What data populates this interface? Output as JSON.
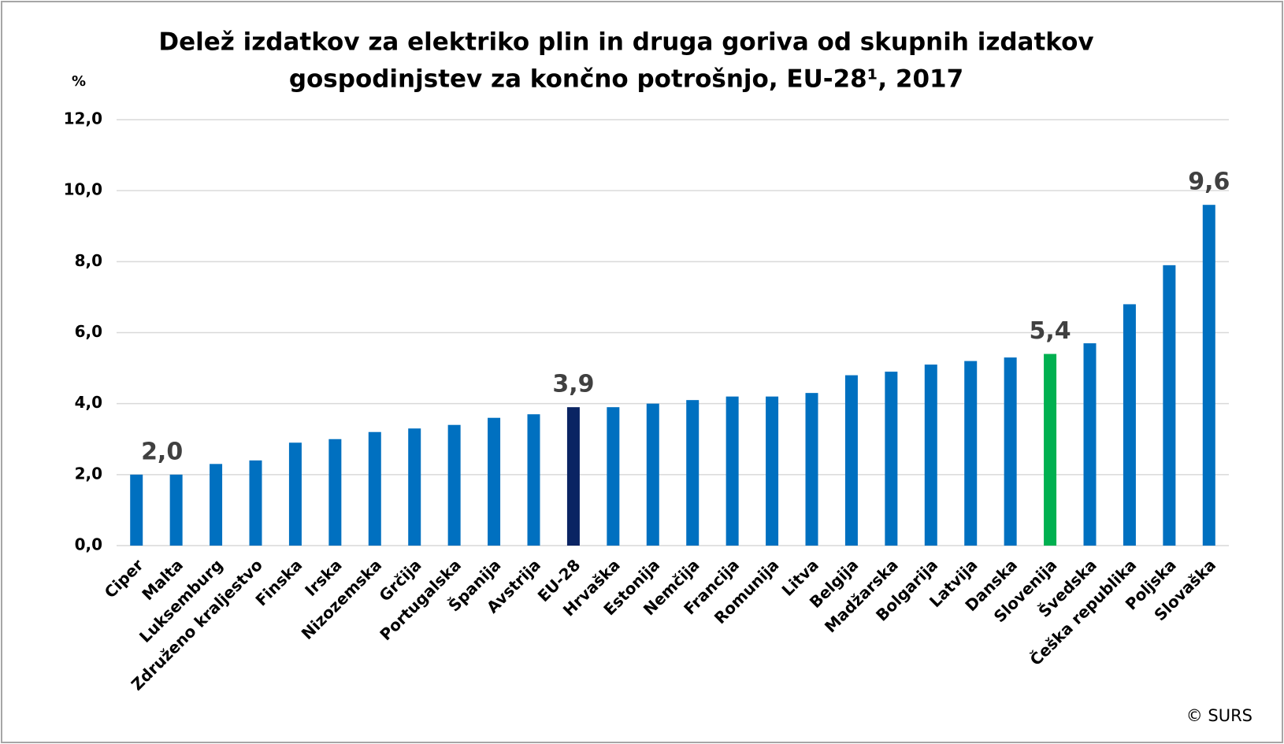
{
  "chart_data": {
    "type": "bar",
    "title": [
      "Delež izdatkov za elektriko plin in druga goriva od skupnih izdatkov",
      "gospodinjstev za končno potrošnjo, EU-28¹, 2017"
    ],
    "y_label": "%",
    "source": "© SURS",
    "categories": [
      "Ciper",
      "Malta",
      "Luksemburg",
      "Združeno kraljestvo",
      "Finska",
      "Irska",
      "Nizozemska",
      "Grčija",
      "Portugalska",
      "Španija",
      "Avstrija",
      "EU-28",
      "Hrvaška",
      "Estonija",
      "Nemčija",
      "Francija",
      "Romunija",
      "Litva",
      "Belgija",
      "Madžarska",
      "Bolgarija",
      "Latvija",
      "Danska",
      "Slovenija",
      "Švedska",
      "Češka republika",
      "Poljska",
      "Slovaška"
    ],
    "values": [
      2.0,
      2.0,
      2.3,
      2.4,
      2.9,
      3.0,
      3.2,
      3.3,
      3.4,
      3.6,
      3.7,
      3.9,
      3.9,
      4.0,
      4.1,
      4.2,
      4.2,
      4.3,
      4.8,
      4.9,
      5.1,
      5.2,
      5.3,
      5.4,
      5.7,
      6.8,
      7.9,
      9.6
    ],
    "value_labels": [
      null,
      "2,0",
      null,
      null,
      null,
      null,
      null,
      null,
      null,
      null,
      null,
      "3,9",
      null,
      null,
      null,
      null,
      null,
      null,
      null,
      null,
      null,
      null,
      null,
      "5,4",
      null,
      null,
      null,
      "9,6"
    ],
    "colors": [
      "#0070c0",
      "#0070c0",
      "#0070c0",
      "#0070c0",
      "#0070c0",
      "#0070c0",
      "#0070c0",
      "#0070c0",
      "#0070c0",
      "#0070c0",
      "#0070c0",
      "#0a2463",
      "#0070c0",
      "#0070c0",
      "#0070c0",
      "#0070c0",
      "#0070c0",
      "#0070c0",
      "#0070c0",
      "#0070c0",
      "#0070c0",
      "#0070c0",
      "#0070c0",
      "#00b050",
      "#0070c0",
      "#0070c0",
      "#0070c0",
      "#0070c0"
    ],
    "ylim": [
      0,
      12
    ],
    "yticks": [
      {
        "value": 0,
        "label": "0,0"
      },
      {
        "value": 2,
        "label": "2,0"
      },
      {
        "value": 4,
        "label": "4,0"
      },
      {
        "value": 6,
        "label": "6,0"
      },
      {
        "value": 8,
        "label": "8,0"
      },
      {
        "value": 10,
        "label": "10,0"
      },
      {
        "value": 12,
        "label": "12,0"
      }
    ],
    "grid": true
  }
}
